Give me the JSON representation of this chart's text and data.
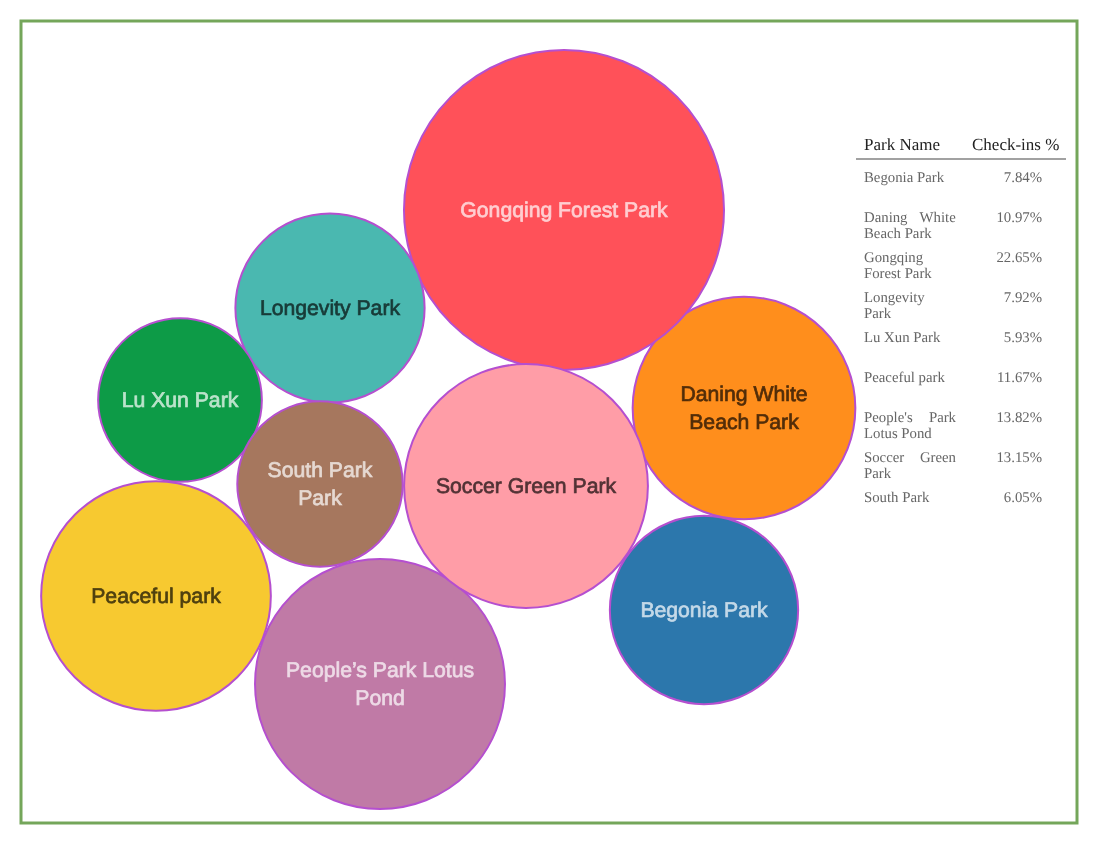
{
  "chart_data": {
    "type": "other",
    "xlabel": "Park Name",
    "ylabel": "Check-ins %",
    "categories": [
      "Begonia Park",
      "Daning White Beach Park",
      "Gongqing Forest Park",
      "Longevity Park",
      "Lu Xun Park",
      "Peaceful park",
      "People's Park Lotus Pond",
      "Soccer Green Park",
      "South Park"
    ],
    "values": [
      7.84,
      10.97,
      22.65,
      7.92,
      5.93,
      11.67,
      13.82,
      13.15,
      6.05
    ],
    "value_labels": [
      "7.84%",
      "10.97%",
      "22.65%",
      "7.92%",
      "5.93%",
      "11.67%",
      "13.82%",
      "13.15%",
      "6.05%"
    ],
    "colors": [
      "#2c77ac",
      "#ff8e1c",
      "#ff5159",
      "#4ab8b0",
      "#0d9b47",
      "#f7c930",
      "#c07aa6",
      "#ff9da7",
      "#a6775e"
    ],
    "annotations": [
      {
        "text": "Begonia Park",
        "x": "Begonia Park"
      },
      {
        "text": "Daning White Beach Park",
        "x": "Daning White Beach Park"
      },
      {
        "text": "Gongqing Forest Park",
        "x": "Gongqing Forest Park"
      },
      {
        "text": "Longevity Park",
        "x": "Longevity Park"
      },
      {
        "text": "Lu Xun Park",
        "x": "Lu Xun Park"
      },
      {
        "text": "Peaceful park",
        "x": "Peaceful park"
      },
      {
        "text": "People’s Park Lotus Pond",
        "x": "People's Park Lotus Pond"
      },
      {
        "text": "Soccer Green Park",
        "x": "Soccer Green Park"
      },
      {
        "text": "South Park Park",
        "x": "South Park"
      }
    ]
  }
}
